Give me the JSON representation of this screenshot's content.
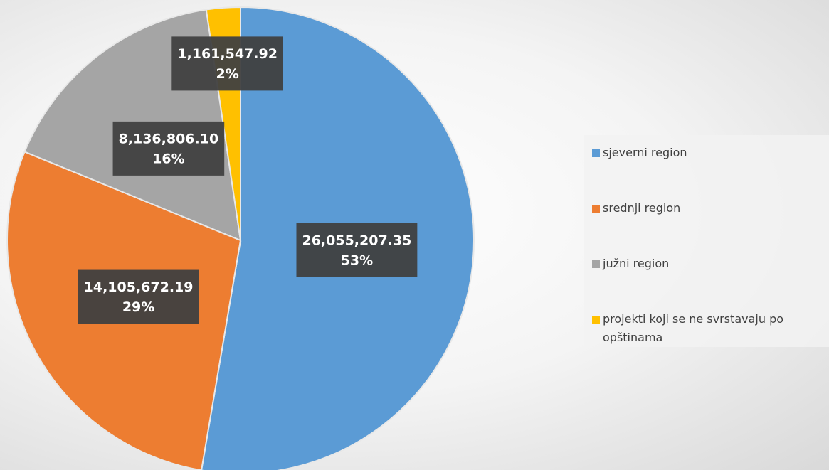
{
  "chart_data": {
    "type": "pie",
    "categories": [
      "sjeverni region",
      "srednji region",
      "južni region",
      "projekti koji se ne svrstavaju po opštinama"
    ],
    "values": [
      26055207.35,
      14105672.19,
      8136806.1,
      1161547.92
    ],
    "value_labels": [
      "26,055,207.35",
      "14,105,672.19",
      "8,136,806.10",
      "1,161,547.92"
    ],
    "percentages": [
      53,
      29,
      16,
      2
    ],
    "percentage_labels": [
      "53%",
      "29%",
      "16%",
      "2%"
    ],
    "colors": [
      "#5b9bd5",
      "#ed7d31",
      "#a5a5a5",
      "#ffc000"
    ],
    "legend": "right"
  }
}
